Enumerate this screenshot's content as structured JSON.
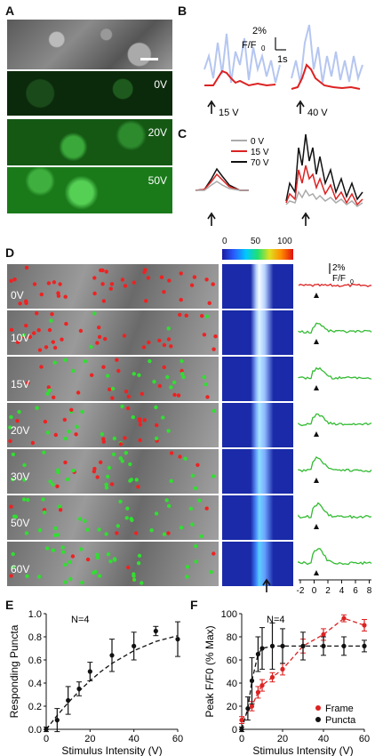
{
  "panels": {
    "A": {
      "letter": "A",
      "voltages": [
        "0V",
        "20V",
        "50V"
      ]
    },
    "B": {
      "letter": "B",
      "scale_value": "2%",
      "scale_unit": "F/F",
      "scale_sub": "0",
      "scale_time": "1s",
      "arrows": [
        "15 V",
        "40 V"
      ]
    },
    "C": {
      "letter": "C",
      "legend": [
        {
          "label": "0 V",
          "color": "#aaaaaa"
        },
        {
          "label": "15 V",
          "color": "#dd2222"
        },
        {
          "label": "70 V",
          "color": "#111111"
        }
      ]
    },
    "D": {
      "letter": "D",
      "colorbar_ticks": [
        "0",
        "50",
        "100"
      ],
      "voltages": [
        "0V",
        "10V",
        "15V",
        "20V",
        "30V",
        "50V",
        "60V"
      ],
      "trace_scale_value": "2%",
      "trace_scale_unit": "F/F",
      "trace_scale_sub": "0",
      "time_ticks": [
        "-2",
        "0",
        "2",
        "4",
        "6",
        "8"
      ]
    },
    "E": {
      "letter": "E"
    },
    "F": {
      "letter": "F"
    }
  },
  "chart_data": [
    {
      "type": "line",
      "panel": "E",
      "annotation": "N=4",
      "xlabel": "Stimulus Intensity (V)",
      "ylabel": "Responding Puncta",
      "xlim": [
        0,
        60
      ],
      "ylim": [
        0,
        1.0
      ],
      "xticks": [
        0,
        20,
        40,
        60
      ],
      "yticks": [
        0.0,
        0.2,
        0.4,
        0.6,
        0.8,
        1.0
      ],
      "series": [
        {
          "x": [
            0,
            5,
            10,
            15,
            20,
            30,
            40,
            50,
            60
          ],
          "y": [
            0.0,
            0.08,
            0.25,
            0.35,
            0.5,
            0.64,
            0.72,
            0.85,
            0.78
          ],
          "err": [
            0.02,
            0.1,
            0.12,
            0.06,
            0.08,
            0.14,
            0.12,
            0.04,
            0.15
          ]
        }
      ],
      "fit": {
        "x": [
          0,
          5,
          10,
          15,
          20,
          25,
          30,
          40,
          50,
          60
        ],
        "y": [
          0.0,
          0.12,
          0.23,
          0.33,
          0.42,
          0.5,
          0.57,
          0.68,
          0.76,
          0.81
        ]
      }
    },
    {
      "type": "line",
      "panel": "F",
      "annotation": "N=4",
      "xlabel": "Stimulus Intensity (V)",
      "ylabel": "Peak F/F0 (% Max)",
      "xlim": [
        0,
        60
      ],
      "ylim": [
        0,
        100
      ],
      "xticks": [
        0,
        20,
        40,
        60
      ],
      "yticks": [
        0,
        20,
        40,
        60,
        80,
        100
      ],
      "series": [
        {
          "name": "Frame",
          "color": "#dd2222",
          "x": [
            0,
            5,
            8,
            10,
            15,
            20,
            30,
            40,
            50,
            60
          ],
          "y": [
            8,
            20,
            32,
            38,
            45,
            52,
            72,
            82,
            96,
            90
          ],
          "err": [
            3,
            4,
            5,
            5,
            4,
            5,
            6,
            5,
            3,
            5
          ]
        },
        {
          "name": "Puncta",
          "color": "#111111",
          "x": [
            0,
            3,
            5,
            8,
            10,
            15,
            20,
            30,
            40,
            50,
            60
          ],
          "y": [
            0,
            18,
            42,
            65,
            70,
            72,
            72,
            72,
            72,
            72,
            72
          ],
          "err": [
            2,
            10,
            20,
            15,
            18,
            20,
            15,
            12,
            8,
            8,
            5
          ]
        }
      ]
    }
  ]
}
